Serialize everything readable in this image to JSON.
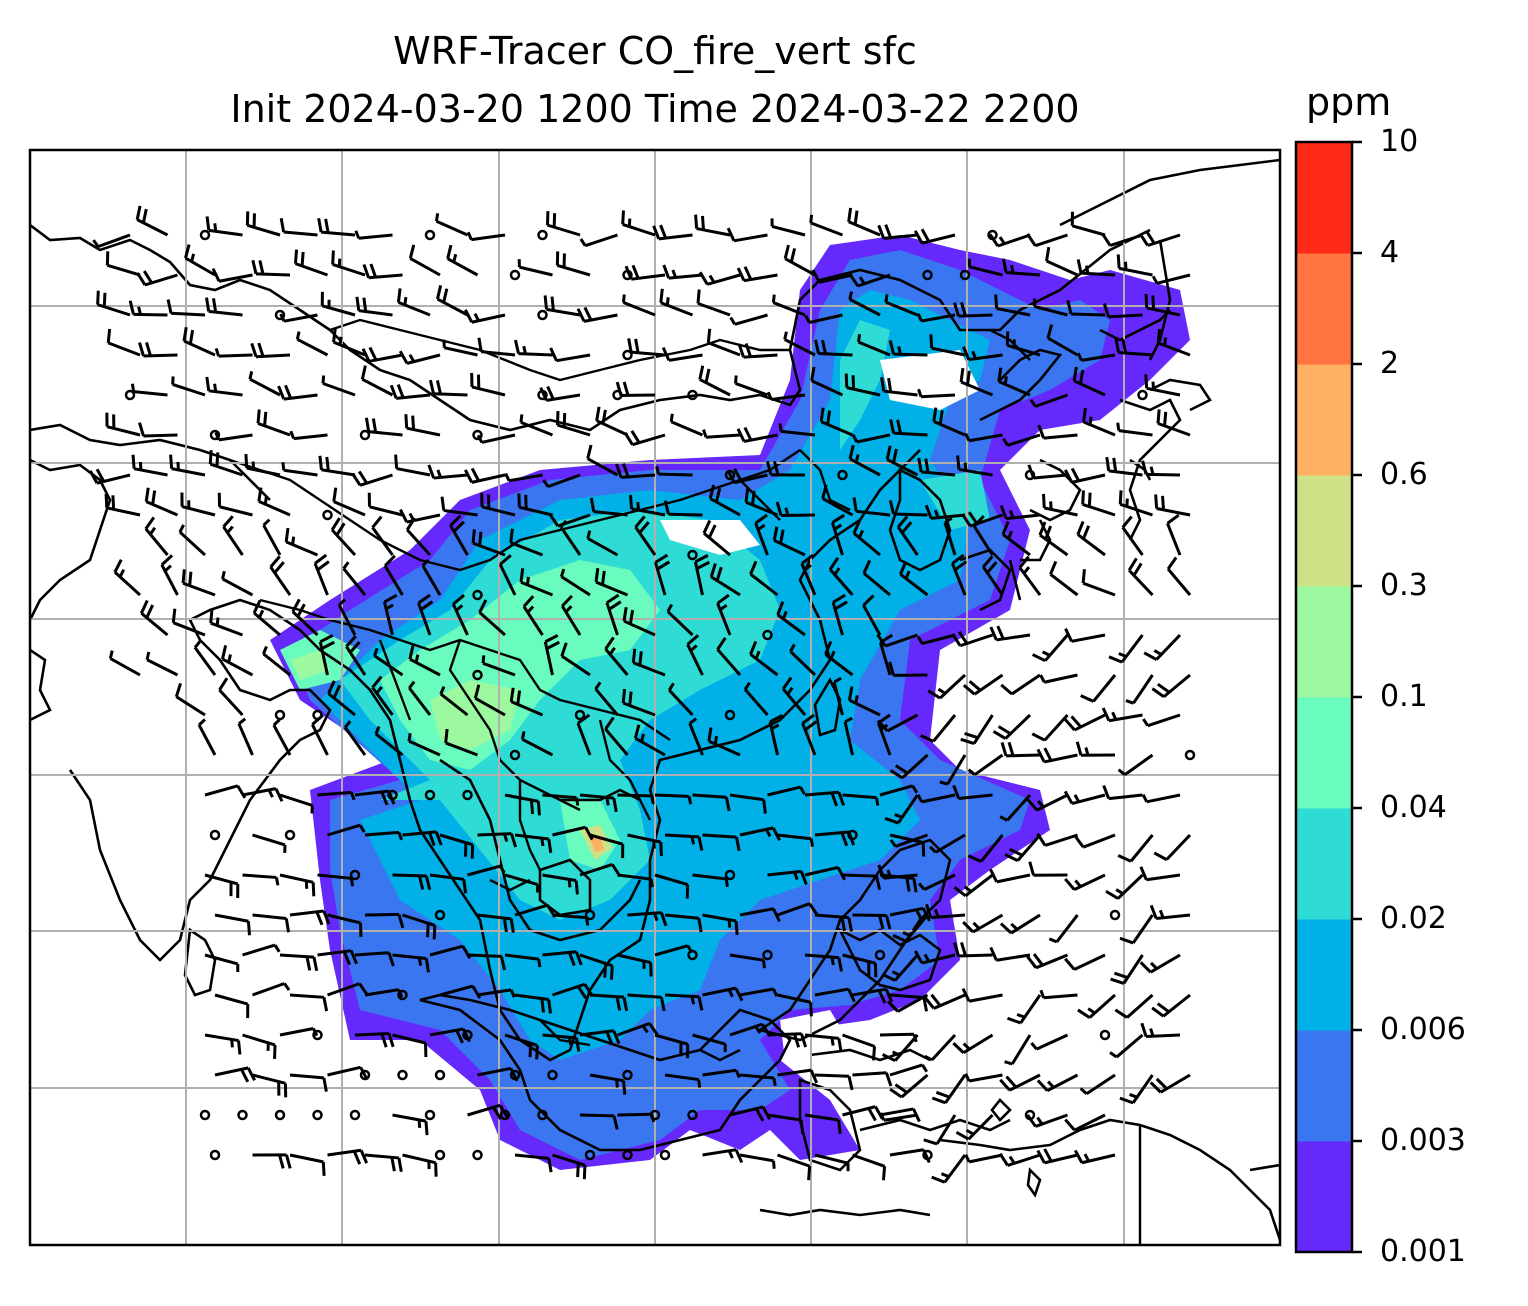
{
  "title": {
    "line1": "WRF-Tracer CO_fire_vert sfc",
    "line2": "Init 2024-03-20 1200 Time 2024-03-22 2200"
  },
  "colorbar": {
    "unit": "ppm",
    "levels": [
      "0.001",
      "0.003",
      "0.006",
      "0.02",
      "0.04",
      "0.1",
      "0.3",
      "0.6",
      "2",
      "4",
      "10"
    ],
    "colors": [
      "#6629fb",
      "#3a76f0",
      "#00b0e7",
      "#2fdbd5",
      "#6afbbf",
      "#9cf99f",
      "#cfe186",
      "#feb063",
      "#ff7440",
      "#ff2b18"
    ]
  },
  "map": {
    "region": "South-East Asia / East Asia",
    "gridlines": true,
    "features": [
      "coastlines",
      "country-borders",
      "wind-barbs",
      "tracer-shading"
    ]
  }
}
